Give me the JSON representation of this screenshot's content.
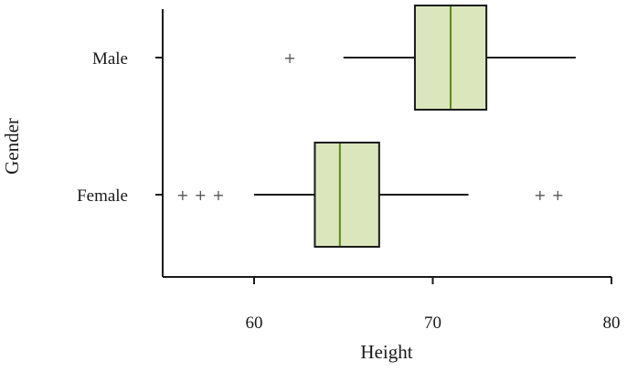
{
  "chart_data": {
    "type": "boxplot",
    "orientation": "horizontal",
    "title": "",
    "xlabel": "Height",
    "ylabel": "Gender",
    "xlim": [
      55,
      80
    ],
    "x_ticks": [
      "60",
      "70",
      "80"
    ],
    "x_tick_values": [
      60,
      70,
      80
    ],
    "grid": false,
    "colors": {
      "box_fill": "#dbe6bc",
      "median": "#5a8a1a",
      "ink": "#1a1a1a"
    },
    "categories": [
      "Male",
      "Female"
    ],
    "series": [
      {
        "category": "Male",
        "whisker_low": 65,
        "q1": 69,
        "median": 71,
        "q3": 73,
        "whisker_high": 78,
        "outliers": [
          62
        ]
      },
      {
        "category": "Female",
        "whisker_low": 60,
        "q1": 63.4,
        "median": 64.8,
        "q3": 67,
        "whisker_high": 72,
        "outliers": [
          56,
          57,
          58,
          76,
          77
        ]
      }
    ]
  }
}
